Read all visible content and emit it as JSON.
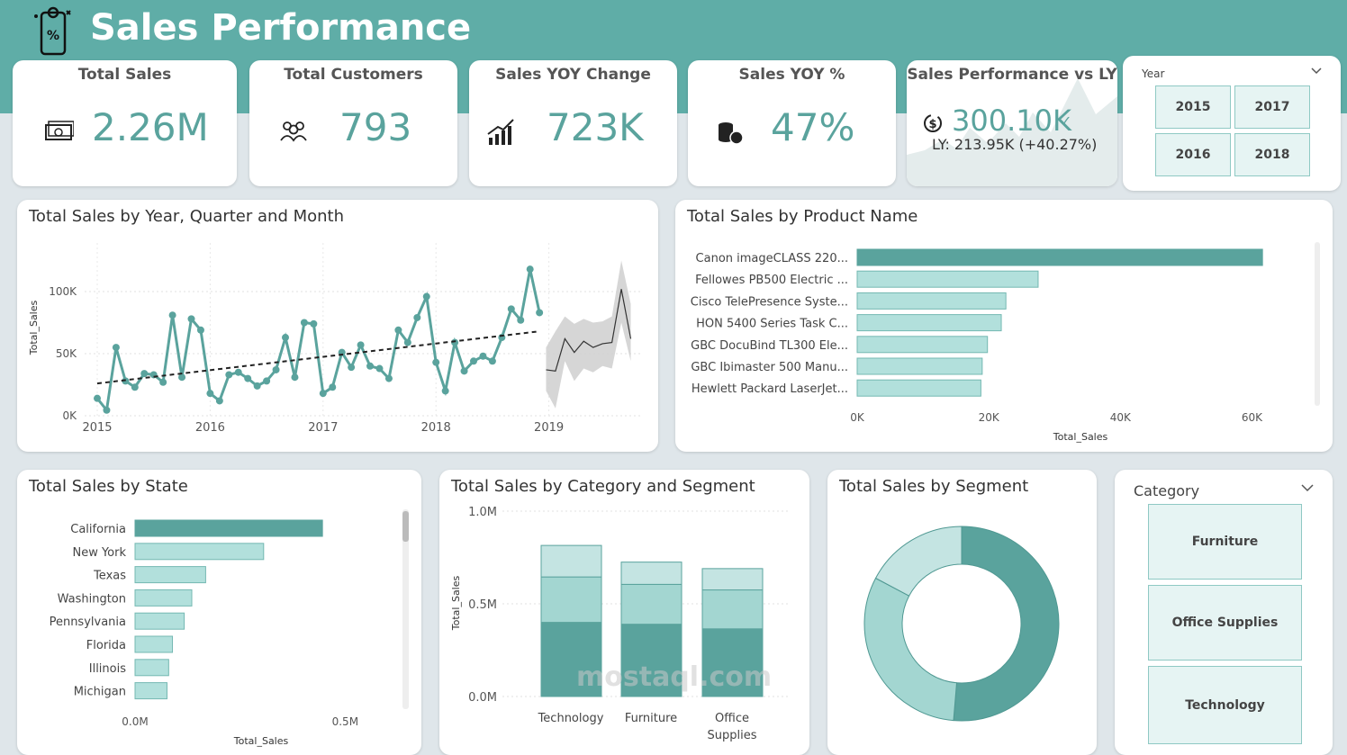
{
  "header": {
    "title": "Sales Performance",
    "icon": "price-tag-phone-icon"
  },
  "kpis": [
    {
      "title": "Total Sales",
      "value": "2.26M",
      "icon": "cash-icon"
    },
    {
      "title": "Total Customers",
      "value": "793",
      "icon": "people-icon"
    },
    {
      "title": "Sales YOY Change",
      "value": "723K",
      "icon": "growth-chart-icon"
    },
    {
      "title": "Sales YOY %",
      "value": "47%",
      "icon": "coins-icon"
    }
  ],
  "vs_ly": {
    "title": "Sales Performance vs LY",
    "value": "300.10K",
    "check": "✓",
    "ly_text": "LY: 213.95K (+40.27%)"
  },
  "year_slicer": {
    "label": "Year",
    "options": [
      "2015",
      "2017",
      "2016",
      "2018"
    ]
  },
  "line_panel": {
    "title": "Total Sales by Year, Quarter and Month",
    "chart_data": {
      "type": "line",
      "ylabel": "Total_Sales",
      "y_ticks": [
        "100K",
        "50K",
        "0K"
      ],
      "x_ticks": [
        "2015",
        "2016",
        "2017",
        "2018",
        "2019"
      ],
      "ylim": [
        0,
        120000
      ],
      "values": [
        14000,
        4500,
        55000,
        28000,
        23000,
        34000,
        33000,
        27000,
        81000,
        31000,
        78000,
        69000,
        18000,
        12000,
        33000,
        35000,
        30000,
        24000,
        28000,
        37000,
        63000,
        31000,
        75000,
        74000,
        18000,
        23000,
        51000,
        39000,
        57000,
        40000,
        38000,
        30000,
        69000,
        59000,
        79000,
        96000,
        43000,
        20000,
        59000,
        36000,
        44000,
        48000,
        44000,
        63000,
        86000,
        77000,
        118000,
        83000
      ],
      "trend": [
        26000,
        68000
      ],
      "forecast": [
        37000,
        36000,
        62000,
        51000,
        60000,
        55000,
        58000,
        59000,
        102000,
        62000
      ],
      "forecast_upper": [
        55000,
        68000,
        80000,
        74000,
        78000,
        75000,
        76000,
        80000,
        125000,
        90000
      ],
      "forecast_lower": [
        20000,
        6000,
        44000,
        28000,
        38000,
        35000,
        40000,
        38000,
        75000,
        44000
      ]
    }
  },
  "product_panel": {
    "title": "Total Sales by Product Name",
    "chart_data": {
      "type": "bar",
      "categories": [
        "Canon imageCLASS 220...",
        "Fellowes PB500 Electric ...",
        "Cisco TelePresence Syste...",
        "HON 5400 Series Task C...",
        "GBC DocuBind TL300 Ele...",
        "GBC Ibimaster 500 Manu...",
        "Hewlett Packard LaserJet..."
      ],
      "values": [
        61600,
        27500,
        22600,
        21900,
        19800,
        19000,
        18800
      ],
      "xlim": [
        0,
        65000
      ],
      "x_ticks": [
        "0K",
        "20K",
        "40K",
        "60K"
      ],
      "xlabel": "Total_Sales"
    }
  },
  "state_panel": {
    "title": "Total Sales by State",
    "chart_data": {
      "type": "bar",
      "categories": [
        "California",
        "New York",
        "Texas",
        "Washington",
        "Pennsylvania",
        "Florida",
        "Illinois",
        "Michigan"
      ],
      "values": [
        446000,
        306000,
        168000,
        135000,
        117000,
        89000,
        80000,
        76000
      ],
      "xlim": [
        0,
        600000
      ],
      "x_ticks": [
        "0.0M",
        "0.5M"
      ],
      "xlabel": "Total_Sales"
    }
  },
  "category_panel": {
    "title": "Total Sales by Category and Segment",
    "chart_data": {
      "type": "bar",
      "stacked": true,
      "categories": [
        "Technology",
        "Furniture",
        "Office Supplies"
      ],
      "category_lines": [
        [
          "Technology"
        ],
        [
          "Furniture"
        ],
        [
          "Office",
          "Supplies"
        ]
      ],
      "series": [
        {
          "values": [
            400000,
            390000,
            365000
          ],
          "color": "#5aa39d"
        },
        {
          "values": [
            245000,
            215000,
            210000
          ],
          "color": "#a3d6d1"
        },
        {
          "values": [
            170000,
            120000,
            115000
          ],
          "color": "#c4e4e2"
        }
      ],
      "ylim": [
        0,
        1000000
      ],
      "y_ticks": [
        "1.0M",
        "0.5M",
        "0.0M"
      ],
      "ylabel": "Total_Sales"
    }
  },
  "segment_panel": {
    "title": "Total Sales by Segment",
    "chart_data": {
      "type": "pie",
      "values": [
        1160000,
        710000,
        390000
      ],
      "colors": [
        "#5aa39d",
        "#a3d6d1",
        "#c4e4e2"
      ]
    }
  },
  "category_slicer": {
    "label": "Category",
    "options": [
      "Furniture",
      "Office Supplies",
      "Technology"
    ]
  },
  "watermark": {
    "text": "mostaql.com"
  }
}
